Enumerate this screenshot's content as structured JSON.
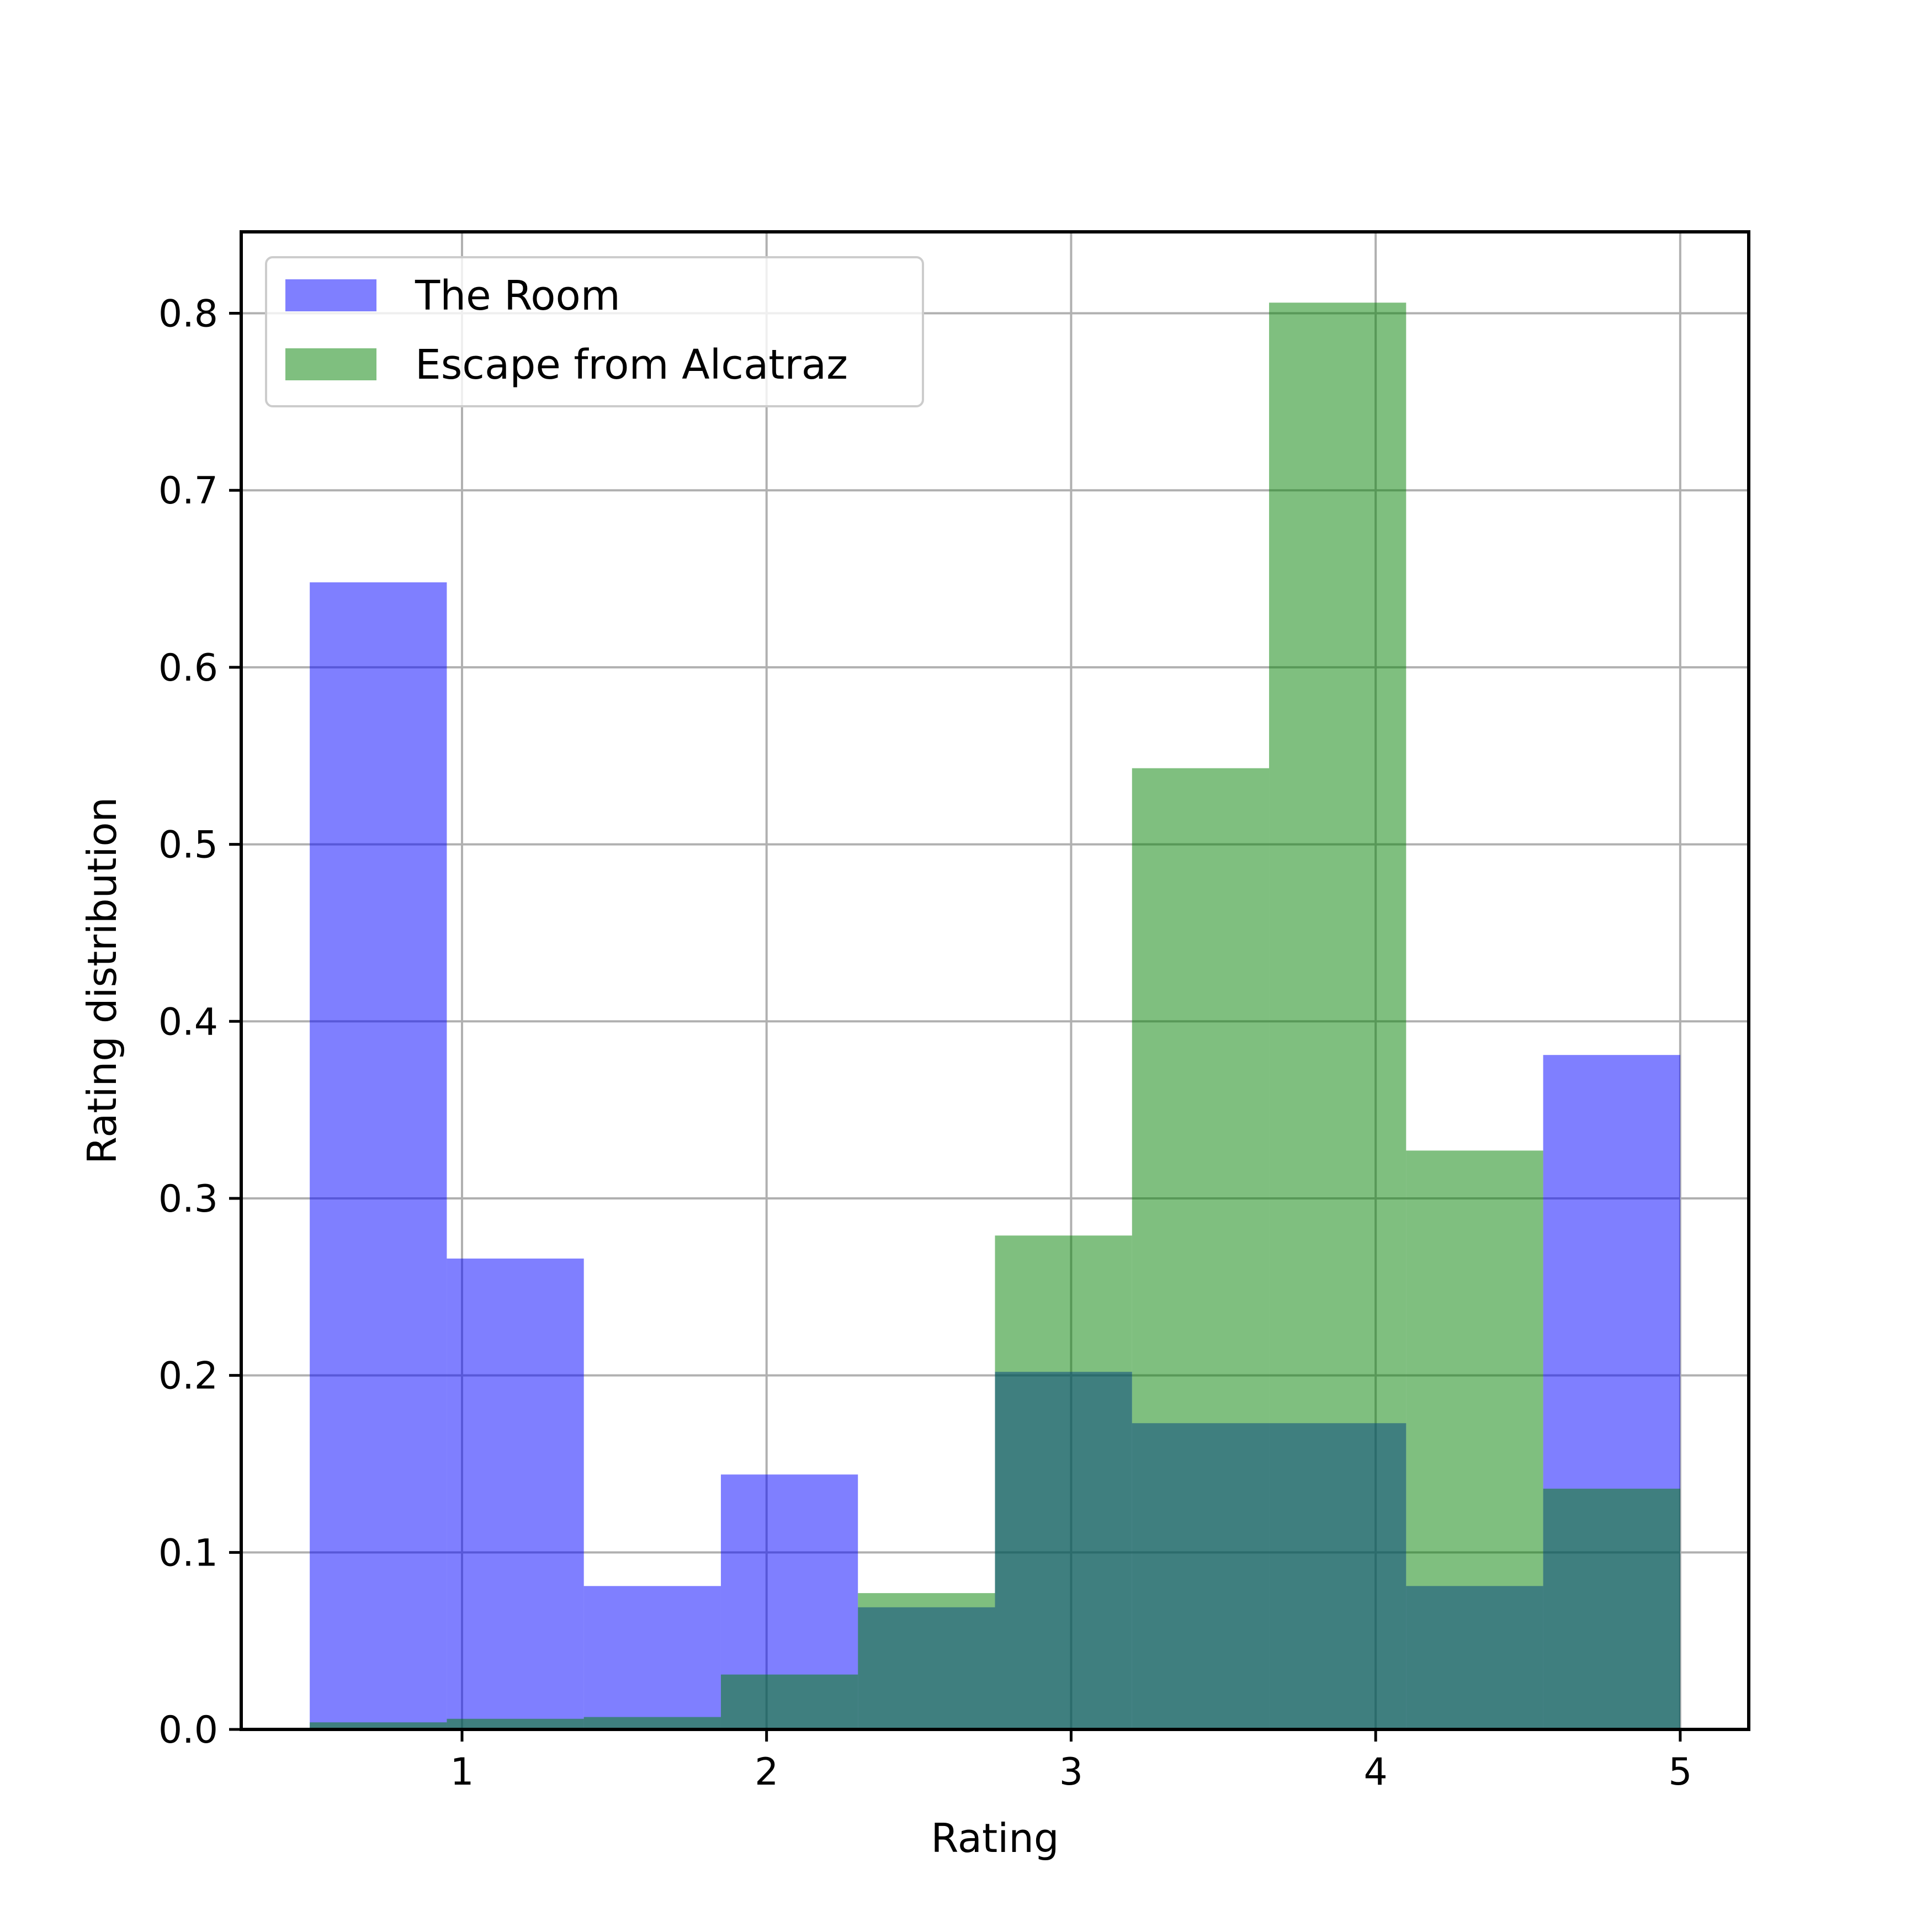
{
  "chart_data": {
    "type": "bar",
    "histogram": true,
    "bin_edges": [
      0.5,
      0.95,
      1.4,
      1.85,
      2.3,
      2.75,
      3.2,
      3.65,
      4.1,
      4.55,
      5.0
    ],
    "series": [
      {
        "name": "The Room",
        "color": "#0000ff",
        "alpha": 0.5,
        "values": [
          0.648,
          0.266,
          0.081,
          0.144,
          0.069,
          0.202,
          0.173,
          0.173,
          0.081,
          0.381
        ]
      },
      {
        "name": "Escape from Alcatraz",
        "color": "#008000",
        "alpha": 0.5,
        "values": [
          0.004,
          0.006,
          0.007,
          0.031,
          0.077,
          0.279,
          0.543,
          0.806,
          0.327,
          0.136
        ]
      }
    ],
    "xlabel": "Rating",
    "ylabel": "Rating distribution",
    "xlim": [
      0.275,
      5.225
    ],
    "ylim": [
      0.0,
      0.846
    ],
    "xticks": [
      "1",
      "2",
      "3",
      "4",
      "5"
    ],
    "yticks": [
      "0.0",
      "0.1",
      "0.2",
      "0.3",
      "0.4",
      "0.5",
      "0.6",
      "0.7",
      "0.8"
    ],
    "grid": true,
    "legend_position": "upper-left"
  }
}
